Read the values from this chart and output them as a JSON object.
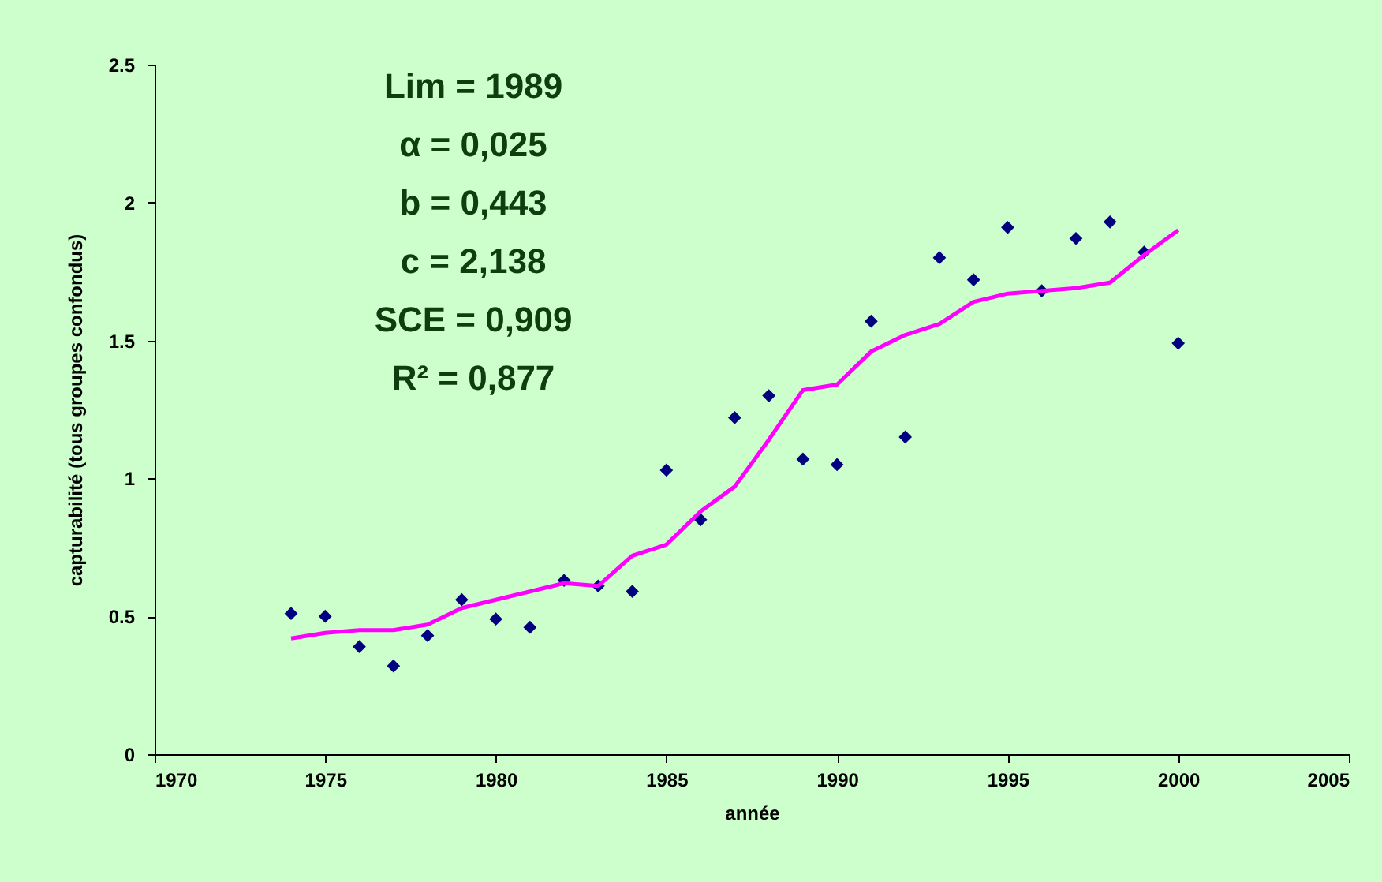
{
  "chart_data": {
    "type": "scatter",
    "xlabel": "année",
    "ylabel": "capturabilité (tous groupes confondus)",
    "annotations": [
      "Lim = 1989",
      "α = 0,025",
      "b = 0,443",
      "c = 2,138",
      "SCE = 0,909",
      "R² = 0,877"
    ],
    "xlim": [
      1970,
      2005
    ],
    "xticks": [
      1970,
      1975,
      1980,
      1985,
      1990,
      1995,
      2000,
      2005
    ],
    "ylim": [
      0,
      2.5
    ],
    "yticks": [
      0,
      0.5,
      1,
      1.5,
      2,
      2.5
    ],
    "grid": false,
    "series": [
      {
        "type": "scatter",
        "color": "#000080",
        "marker": "diamond",
        "x": [
          1974,
          1975,
          1976,
          1977,
          1978,
          1979,
          1980,
          1981,
          1982,
          1983,
          1984,
          1985,
          1986,
          1987,
          1988,
          1989,
          1990,
          1991,
          1992,
          1993,
          1994,
          1995,
          1996,
          1997,
          1998,
          1999,
          2000
        ],
        "values": [
          0.51,
          0.5,
          0.39,
          0.32,
          0.43,
          0.56,
          0.49,
          0.46,
          0.63,
          0.61,
          0.59,
          1.03,
          0.85,
          1.22,
          1.3,
          1.07,
          1.05,
          1.57,
          1.15,
          1.8,
          1.72,
          1.91,
          1.68,
          1.87,
          1.93,
          1.82,
          1.49
        ]
      },
      {
        "type": "line",
        "color": "#ff00ff",
        "line_style": "solid",
        "x": [
          1974,
          1975,
          1976,
          1977,
          1978,
          1979,
          1980,
          1981,
          1982,
          1983,
          1984,
          1985,
          1986,
          1987,
          1988,
          1989,
          1990,
          1991,
          1992,
          1993,
          1994,
          1995,
          1996,
          1997,
          1998,
          1999,
          2000
        ],
        "values": [
          0.42,
          0.44,
          0.45,
          0.45,
          0.47,
          0.53,
          0.56,
          0.59,
          0.62,
          0.61,
          0.72,
          0.76,
          0.88,
          0.97,
          1.14,
          1.32,
          1.34,
          1.46,
          1.52,
          1.56,
          1.64,
          1.67,
          1.68,
          1.69,
          1.71,
          1.81,
          1.9
        ]
      }
    ]
  }
}
